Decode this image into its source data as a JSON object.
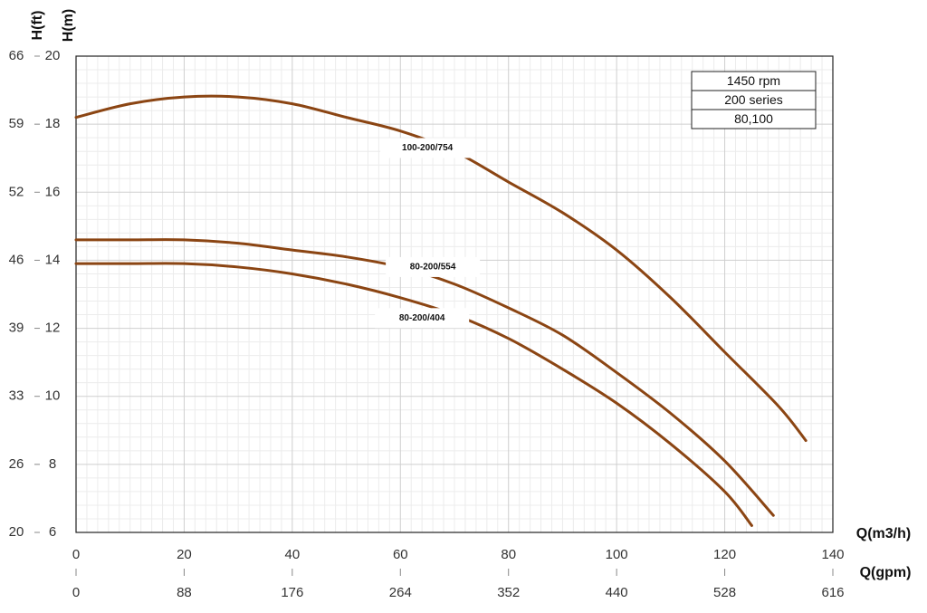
{
  "chart_data": {
    "type": "line",
    "title": "",
    "xlabel": "Q(m3/h)",
    "xlabel2": "Q(gpm)",
    "ylabel": "H(m)",
    "ylabel2": "H(ft)",
    "xlim": [
      0,
      140
    ],
    "ylim": [
      6,
      20
    ],
    "grid": true,
    "x_ticks": [
      "0",
      "20",
      "40",
      "60",
      "80",
      "100",
      "120",
      "140"
    ],
    "x2_ticks": [
      "0",
      "88",
      "176",
      "264",
      "352",
      "440",
      "528",
      "616"
    ],
    "y_ticks": [
      "6",
      "8",
      "10",
      "12",
      "14",
      "16",
      "18",
      "20"
    ],
    "y2_ticks": [
      "20",
      "26",
      "33",
      "39",
      "46",
      "52",
      "59",
      "66"
    ],
    "legend": [
      "1450 rpm",
      "200 series",
      "80,100"
    ],
    "curve_colors": [
      "#8b4513"
    ],
    "series": [
      {
        "name": "100-200/754",
        "label_at": [
          65,
          17.3
        ],
        "x": [
          0,
          10,
          20,
          30,
          40,
          50,
          60,
          70,
          80,
          90,
          100,
          110,
          120,
          130,
          135
        ],
        "y": [
          18.2,
          18.6,
          18.8,
          18.8,
          18.6,
          18.2,
          17.8,
          17.2,
          16.3,
          15.4,
          14.3,
          12.9,
          11.3,
          9.7,
          8.7
        ]
      },
      {
        "name": "80-200/554",
        "label_at": [
          66,
          13.8
        ],
        "x": [
          0,
          10,
          20,
          30,
          40,
          50,
          60,
          70,
          80,
          90,
          100,
          110,
          120,
          129
        ],
        "y": [
          14.6,
          14.6,
          14.6,
          14.5,
          14.3,
          14.1,
          13.8,
          13.3,
          12.6,
          11.8,
          10.7,
          9.5,
          8.1,
          6.5
        ]
      },
      {
        "name": "80-200/404",
        "label_at": [
          64,
          12.3
        ],
        "x": [
          0,
          10,
          20,
          30,
          40,
          50,
          60,
          70,
          80,
          90,
          100,
          110,
          120,
          125
        ],
        "y": [
          13.9,
          13.9,
          13.9,
          13.8,
          13.6,
          13.3,
          12.9,
          12.4,
          11.7,
          10.8,
          9.8,
          8.6,
          7.2,
          6.2
        ]
      }
    ]
  }
}
